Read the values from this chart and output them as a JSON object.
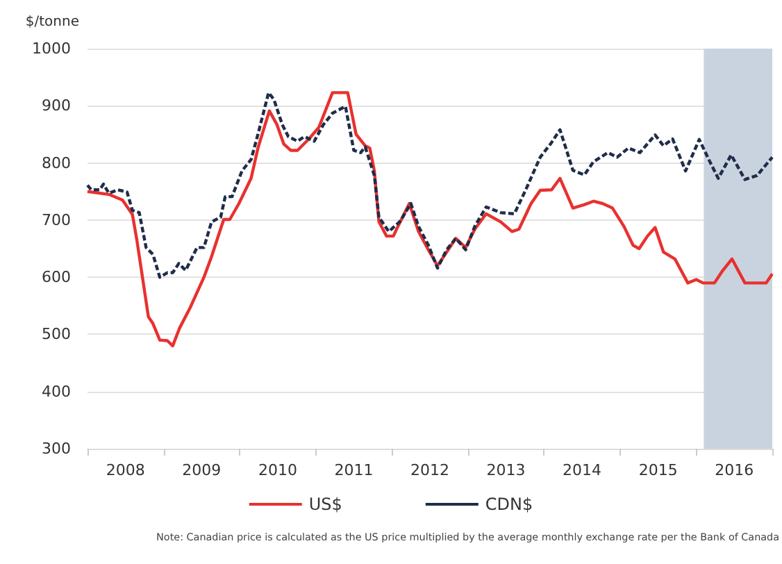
{
  "chart_data": {
    "type": "line",
    "ylabel": "$/tonne",
    "xlim": [
      2008,
      2017
    ],
    "ylim": [
      300,
      1000
    ],
    "xticks": [
      {
        "value": 2008,
        "label": null
      },
      {
        "value": 2008.5,
        "label": "2008"
      },
      {
        "value": 2009,
        "label": null
      },
      {
        "value": 2009.5,
        "label": "2009"
      },
      {
        "value": 2010,
        "label": null
      },
      {
        "value": 2010.5,
        "label": "2010"
      },
      {
        "value": 2011,
        "label": null
      },
      {
        "value": 2011.5,
        "label": "2011"
      },
      {
        "value": 2012,
        "label": null
      },
      {
        "value": 2012.5,
        "label": "2012"
      },
      {
        "value": 2013,
        "label": null
      },
      {
        "value": 2013.5,
        "label": "2013"
      },
      {
        "value": 2014,
        "label": null
      },
      {
        "value": 2014.5,
        "label": "2014"
      },
      {
        "value": 2015,
        "label": null
      },
      {
        "value": 2015.5,
        "label": "2015"
      },
      {
        "value": 2016,
        "label": null
      },
      {
        "value": 2016.5,
        "label": "2016"
      },
      {
        "value": 2017,
        "label": null
      }
    ],
    "yticks": [
      300,
      400,
      500,
      600,
      700,
      800,
      900,
      1000
    ],
    "grid": "y",
    "legend": "bottom",
    "marker": "none",
    "bands": [
      {
        "axis": "x",
        "from": 2016.1,
        "to": 2017,
        "color": "#c9d3df"
      }
    ],
    "annotations": [
      "Note: Canadian price is calculated as the US price multiplied by the average monthly exchange rate per the Bank of Canada"
    ],
    "series": [
      {
        "name": "US$",
        "color": "#e8312f",
        "line_style": "solid",
        "x": [
          2008,
          2008.28,
          2008.46,
          2008.59,
          2008.65,
          2008.8,
          2008.86,
          2008.95,
          2009.05,
          2009.12,
          2009.21,
          2009.35,
          2009.53,
          2009.63,
          2009.79,
          2009.87,
          2009.99,
          2010.15,
          2010.24,
          2010.39,
          2010.49,
          2010.58,
          2010.67,
          2010.76,
          2010.91,
          2011.04,
          2011.22,
          2011.42,
          2011.53,
          2011.65,
          2011.71,
          2011.77,
          2011.83,
          2011.93,
          2012.02,
          2012.08,
          2012.23,
          2012.35,
          2012.48,
          2012.6,
          2012.72,
          2012.84,
          2012.97,
          2013.09,
          2013.24,
          2013.43,
          2013.58,
          2013.67,
          2013.83,
          2013.95,
          2014.1,
          2014.21,
          2014.38,
          2014.53,
          2014.65,
          2014.77,
          2014.9,
          2015.05,
          2015.17,
          2015.25,
          2015.36,
          2015.46,
          2015.57,
          2015.72,
          2015.89,
          2016,
          2016.09,
          2016.24,
          2016.35,
          2016.47,
          2016.64,
          2016.92,
          2017
        ],
        "values": [
          750,
          745,
          735,
          710,
          664,
          531,
          519,
          490,
          489,
          480,
          511,
          547,
          600,
          636,
          701,
          701,
          729,
          773,
          826,
          891,
          867,
          833,
          822,
          822,
          842,
          862,
          923,
          923,
          850,
          830,
          826,
          786,
          697,
          672,
          672,
          689,
          729,
          680,
          648,
          620,
          644,
          668,
          652,
          684,
          711,
          697,
          680,
          684,
          729,
          752,
          753,
          773,
          721,
          727,
          733,
          729,
          721,
          689,
          656,
          650,
          672,
          687,
          644,
          632,
          590,
          596,
          590,
          590,
          612,
          632,
          590,
          590,
          606
        ]
      },
      {
        "name": "CDN$",
        "color": "#1f2d4a",
        "line_style": "dashed",
        "x": [
          2008,
          2008.05,
          2008.16,
          2008.21,
          2008.28,
          2008.4,
          2008.52,
          2008.59,
          2008.68,
          2008.77,
          2008.86,
          2008.95,
          2009.05,
          2009.12,
          2009.2,
          2009.29,
          2009.44,
          2009.53,
          2009.63,
          2009.75,
          2009.81,
          2009.9,
          2010.03,
          2010.15,
          2010.24,
          2010.38,
          2010.45,
          2010.56,
          2010.64,
          2010.76,
          2010.85,
          2010.98,
          2011.1,
          2011.22,
          2011.39,
          2011.5,
          2011.59,
          2011.65,
          2011.77,
          2011.83,
          2011.96,
          2012.11,
          2012.25,
          2012.35,
          2012.48,
          2012.6,
          2012.72,
          2012.84,
          2012.97,
          2013.09,
          2013.24,
          2013.43,
          2013.61,
          2013.76,
          2013.95,
          2014.09,
          2014.21,
          2014.38,
          2014.53,
          2014.65,
          2014.84,
          2014.96,
          2015.11,
          2015.26,
          2015.46,
          2015.57,
          2015.69,
          2015.86,
          2016.04,
          2016.18,
          2016.29,
          2016.46,
          2016.64,
          2016.8,
          2017
        ],
        "values": [
          761,
          753,
          753,
          763,
          747,
          753,
          749,
          717,
          713,
          652,
          640,
          600,
          608,
          608,
          624,
          612,
          652,
          652,
          697,
          705,
          741,
          741,
          786,
          806,
          850,
          923,
          911,
          867,
          846,
          838,
          846,
          838,
          867,
          887,
          899,
          822,
          818,
          828,
          778,
          705,
          680,
          698,
          729,
          689,
          656,
          616,
          648,
          668,
          648,
          689,
          723,
          713,
          711,
          753,
          810,
          834,
          858,
          787,
          779,
          802,
          818,
          810,
          826,
          818,
          849,
          830,
          842,
          786,
          841,
          802,
          773,
          814,
          771,
          778,
          810
        ]
      }
    ]
  }
}
